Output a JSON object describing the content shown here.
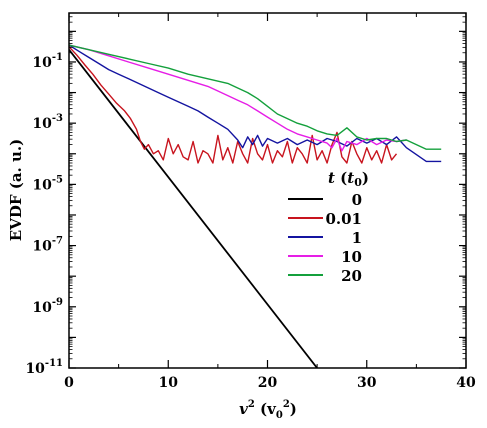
{
  "chart_data": {
    "type": "line",
    "title": "",
    "xlabel": "v² (v₀²)",
    "ylabel": "EVDF (a. u.)",
    "xlim": [
      0,
      40
    ],
    "ylim_log10": [
      -11,
      0.6
    ],
    "y_scale": "log",
    "x_ticks": [
      0,
      10,
      20,
      30,
      40
    ],
    "y_ticks_log10": [
      -11,
      -9,
      -7,
      -5,
      -3,
      -1
    ],
    "legend": {
      "title": "t (t₀)",
      "position": "center-right"
    },
    "series": [
      {
        "name": "0",
        "color": "#000000",
        "points_log10": [
          [
            0,
            -0.6
          ],
          [
            25,
            -11
          ]
        ]
      },
      {
        "name": "0.01",
        "color": "#c8141e",
        "points_log10": [
          [
            0,
            -0.5
          ],
          [
            0.8,
            -0.78
          ],
          [
            1.6,
            -1.1
          ],
          [
            2.4,
            -1.4
          ],
          [
            3.2,
            -1.75
          ],
          [
            4,
            -2.05
          ],
          [
            4.8,
            -2.35
          ],
          [
            5.6,
            -2.6
          ],
          [
            6.2,
            -2.85
          ],
          [
            6.8,
            -3.2
          ],
          [
            7.2,
            -3.6
          ],
          [
            7.6,
            -3.85
          ],
          [
            8,
            -3.7
          ],
          [
            8.5,
            -4.0
          ],
          [
            9,
            -3.9
          ],
          [
            9.5,
            -4.2
          ],
          [
            10,
            -3.5
          ],
          [
            10.5,
            -4.0
          ],
          [
            11,
            -3.7
          ],
          [
            11.5,
            -4.1
          ],
          [
            12,
            -4.2
          ],
          [
            12.5,
            -3.6
          ],
          [
            13,
            -4.3
          ],
          [
            13.5,
            -3.9
          ],
          [
            14,
            -4.0
          ],
          [
            14.5,
            -4.3
          ],
          [
            15,
            -3.4
          ],
          [
            15.5,
            -4.2
          ],
          [
            16,
            -3.8
          ],
          [
            16.5,
            -4.3
          ],
          [
            17,
            -3.6
          ],
          [
            17.5,
            -4.0
          ],
          [
            18,
            -4.3
          ],
          [
            18.5,
            -3.5
          ],
          [
            19,
            -4.0
          ],
          [
            19.5,
            -4.2
          ],
          [
            20,
            -3.7
          ],
          [
            20.5,
            -4.3
          ],
          [
            21,
            -3.9
          ],
          [
            21.5,
            -4.1
          ],
          [
            22,
            -3.6
          ],
          [
            22.5,
            -4.3
          ],
          [
            23,
            -3.8
          ],
          [
            23.5,
            -4.0
          ],
          [
            24,
            -4.3
          ],
          [
            24.5,
            -3.4
          ],
          [
            25,
            -4.2
          ],
          [
            25.5,
            -3.9
          ],
          [
            26,
            -4.3
          ],
          [
            26.5,
            -3.7
          ],
          [
            27,
            -3.3
          ],
          [
            27.5,
            -4.1
          ],
          [
            28,
            -4.3
          ],
          [
            28.5,
            -3.6
          ],
          [
            29,
            -4.0
          ],
          [
            29.5,
            -4.3
          ],
          [
            30,
            -3.8
          ],
          [
            30.5,
            -4.2
          ],
          [
            31,
            -3.9
          ],
          [
            31.5,
            -4.3
          ],
          [
            32,
            -3.7
          ],
          [
            32.5,
            -4.2
          ],
          [
            33,
            -4.0
          ]
        ]
      },
      {
        "name": "1",
        "color": "#1414a0",
        "points_log10": [
          [
            0,
            -0.45
          ],
          [
            1,
            -0.65
          ],
          [
            2,
            -0.85
          ],
          [
            3,
            -1.05
          ],
          [
            4,
            -1.25
          ],
          [
            5,
            -1.4
          ],
          [
            6,
            -1.55
          ],
          [
            7,
            -1.7
          ],
          [
            8,
            -1.85
          ],
          [
            9,
            -2.0
          ],
          [
            10,
            -2.15
          ],
          [
            11,
            -2.3
          ],
          [
            12,
            -2.45
          ],
          [
            13,
            -2.6
          ],
          [
            14,
            -2.8
          ],
          [
            15,
            -3.0
          ],
          [
            16,
            -3.2
          ],
          [
            17,
            -3.55
          ],
          [
            17.5,
            -3.8
          ],
          [
            18,
            -3.45
          ],
          [
            18.5,
            -3.7
          ],
          [
            19,
            -3.4
          ],
          [
            19.5,
            -3.75
          ],
          [
            20,
            -3.5
          ],
          [
            21,
            -3.65
          ],
          [
            22,
            -3.5
          ],
          [
            23,
            -3.7
          ],
          [
            24,
            -3.55
          ],
          [
            25,
            -3.7
          ],
          [
            26,
            -3.5
          ],
          [
            27,
            -3.6
          ],
          [
            28,
            -3.75
          ],
          [
            29,
            -3.5
          ],
          [
            30,
            -3.65
          ],
          [
            31,
            -3.5
          ],
          [
            32,
            -3.7
          ],
          [
            33,
            -3.45
          ],
          [
            34,
            -3.8
          ],
          [
            36,
            -4.25
          ],
          [
            37.5,
            -4.25
          ]
        ]
      },
      {
        "name": "10",
        "color": "#e61ee6",
        "points_log10": [
          [
            0,
            -0.45
          ],
          [
            2,
            -0.6
          ],
          [
            4,
            -0.8
          ],
          [
            6,
            -1.0
          ],
          [
            8,
            -1.2
          ],
          [
            10,
            -1.4
          ],
          [
            12,
            -1.6
          ],
          [
            14,
            -1.8
          ],
          [
            15,
            -1.95
          ],
          [
            16,
            -2.1
          ],
          [
            17,
            -2.25
          ],
          [
            18,
            -2.4
          ],
          [
            19,
            -2.6
          ],
          [
            20,
            -2.8
          ],
          [
            21,
            -3.0
          ],
          [
            22,
            -3.2
          ],
          [
            23,
            -3.35
          ],
          [
            24,
            -3.45
          ],
          [
            25,
            -3.55
          ],
          [
            26,
            -3.65
          ],
          [
            26.5,
            -3.8
          ],
          [
            27,
            -3.5
          ],
          [
            27.5,
            -3.9
          ],
          [
            28,
            -3.6
          ],
          [
            29,
            -3.7
          ],
          [
            30,
            -3.5
          ],
          [
            31,
            -3.7
          ],
          [
            32,
            -3.55
          ],
          [
            33,
            -3.6
          ],
          [
            34,
            -3.55
          ]
        ]
      },
      {
        "name": "20",
        "color": "#14a03c",
        "points_log10": [
          [
            0,
            -0.45
          ],
          [
            2,
            -0.6
          ],
          [
            4,
            -0.75
          ],
          [
            6,
            -0.9
          ],
          [
            8,
            -1.05
          ],
          [
            10,
            -1.2
          ],
          [
            12,
            -1.4
          ],
          [
            14,
            -1.55
          ],
          [
            16,
            -1.7
          ],
          [
            17,
            -1.85
          ],
          [
            18,
            -2.0
          ],
          [
            19,
            -2.2
          ],
          [
            20,
            -2.45
          ],
          [
            21,
            -2.7
          ],
          [
            22,
            -2.85
          ],
          [
            23,
            -3.0
          ],
          [
            24,
            -3.1
          ],
          [
            25,
            -3.25
          ],
          [
            26,
            -3.35
          ],
          [
            27,
            -3.4
          ],
          [
            28,
            -3.15
          ],
          [
            29,
            -3.45
          ],
          [
            30,
            -3.55
          ],
          [
            31,
            -3.5
          ],
          [
            32,
            -3.5
          ],
          [
            33,
            -3.6
          ],
          [
            34,
            -3.55
          ],
          [
            36,
            -3.85
          ],
          [
            37.5,
            -3.85
          ]
        ]
      }
    ]
  }
}
